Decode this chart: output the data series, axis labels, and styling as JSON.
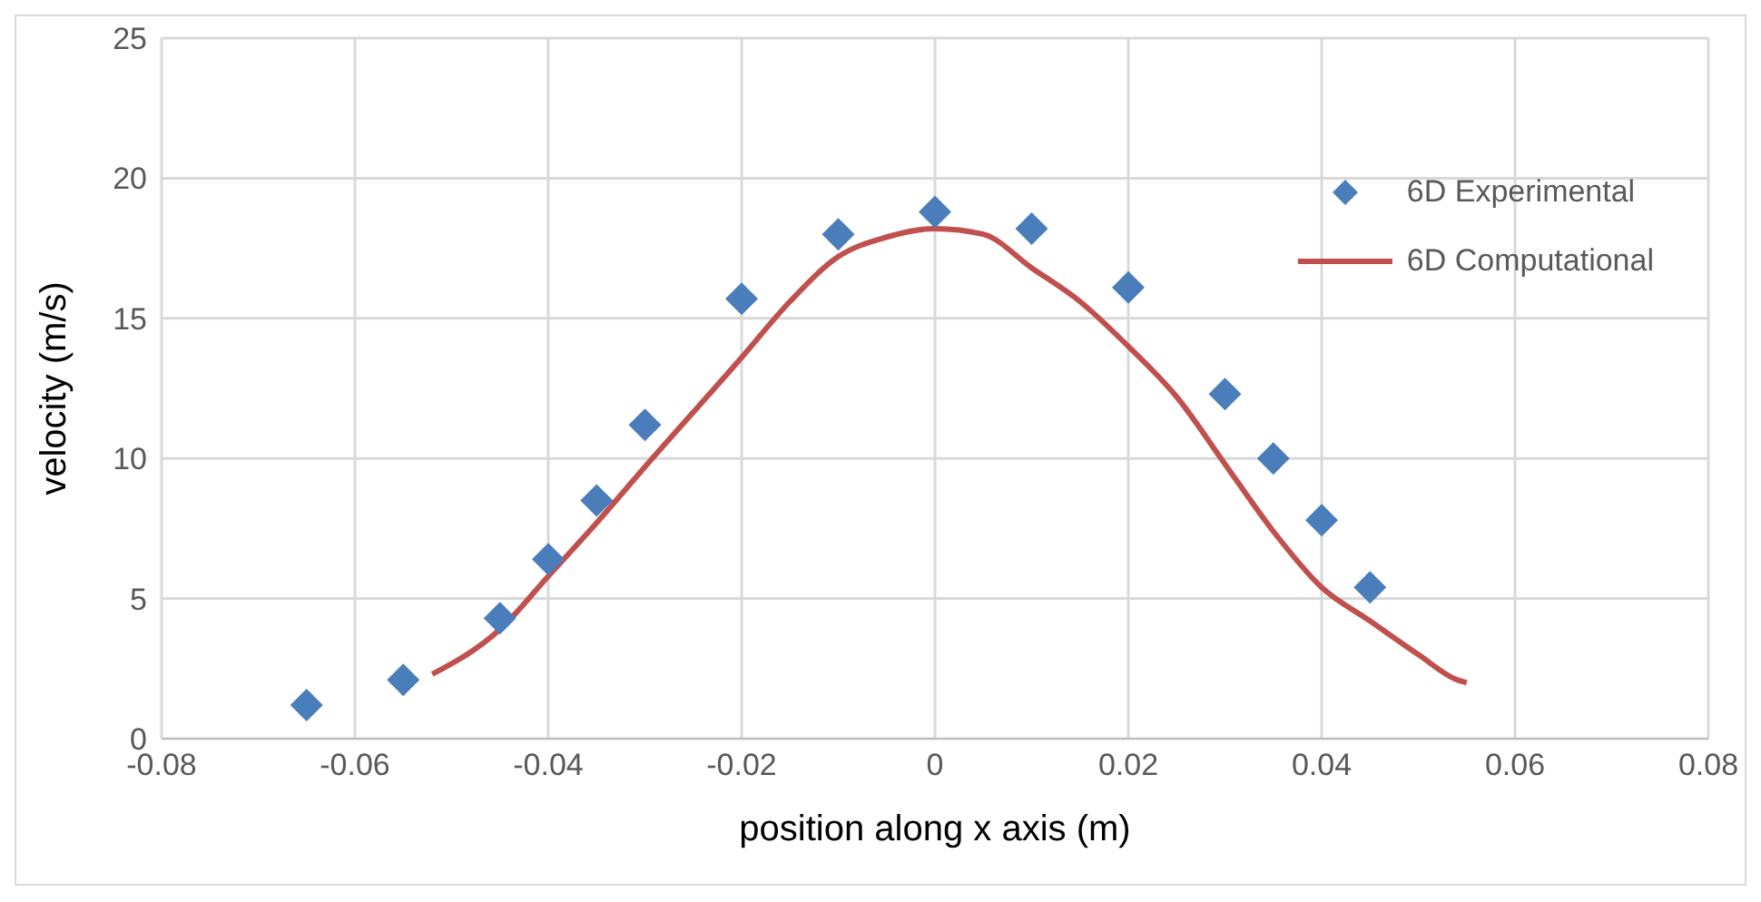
{
  "chart_data": {
    "type": "scatter",
    "xlabel": "position along x axis (m)",
    "ylabel": "velocity (m/s)",
    "xlim": [
      -0.08,
      0.08
    ],
    "xticks": [
      -0.08,
      -0.06,
      -0.04,
      -0.02,
      0,
      0.02,
      0.04,
      0.06,
      0.08
    ],
    "ylim": [
      0,
      25
    ],
    "yticks": [
      0,
      5,
      10,
      15,
      20,
      25
    ],
    "grid": true,
    "legend": "top right",
    "series": [
      {
        "name": "6D Experimental",
        "marker": "diamond",
        "color": "#4a7ebb",
        "x": [
          -0.065,
          -0.055,
          -0.045,
          -0.04,
          -0.035,
          -0.03,
          -0.02,
          -0.01,
          0,
          0.01,
          0.02,
          0.03,
          0.035,
          0.04,
          0.045
        ],
        "values": [
          1.2,
          2.1,
          4.3,
          6.4,
          8.5,
          11.2,
          15.7,
          18.0,
          18.8,
          18.2,
          16.1,
          12.3,
          10.0,
          7.8,
          5.4
        ]
      },
      {
        "name": "6D Computational",
        "type": "line",
        "marker": "none",
        "line_style": "solid",
        "color": "#c0504d",
        "x": [
          -0.052,
          -0.045,
          -0.04,
          -0.035,
          -0.03,
          -0.02,
          -0.015,
          -0.01,
          -0.005,
          0,
          0.005,
          0.01,
          0.015,
          0.02,
          0.025,
          0.03,
          0.035,
          0.04,
          0.045,
          0.05,
          0.054,
          0.055
        ],
        "values": [
          2.3,
          3.9,
          5.8,
          7.7,
          9.7,
          13.6,
          15.6,
          17.2,
          17.9,
          18.2,
          18.0,
          16.8,
          15.6,
          14.0,
          12.2,
          9.8,
          7.4,
          5.4,
          4.2,
          3.0,
          2.1,
          2.0
        ]
      }
    ]
  }
}
